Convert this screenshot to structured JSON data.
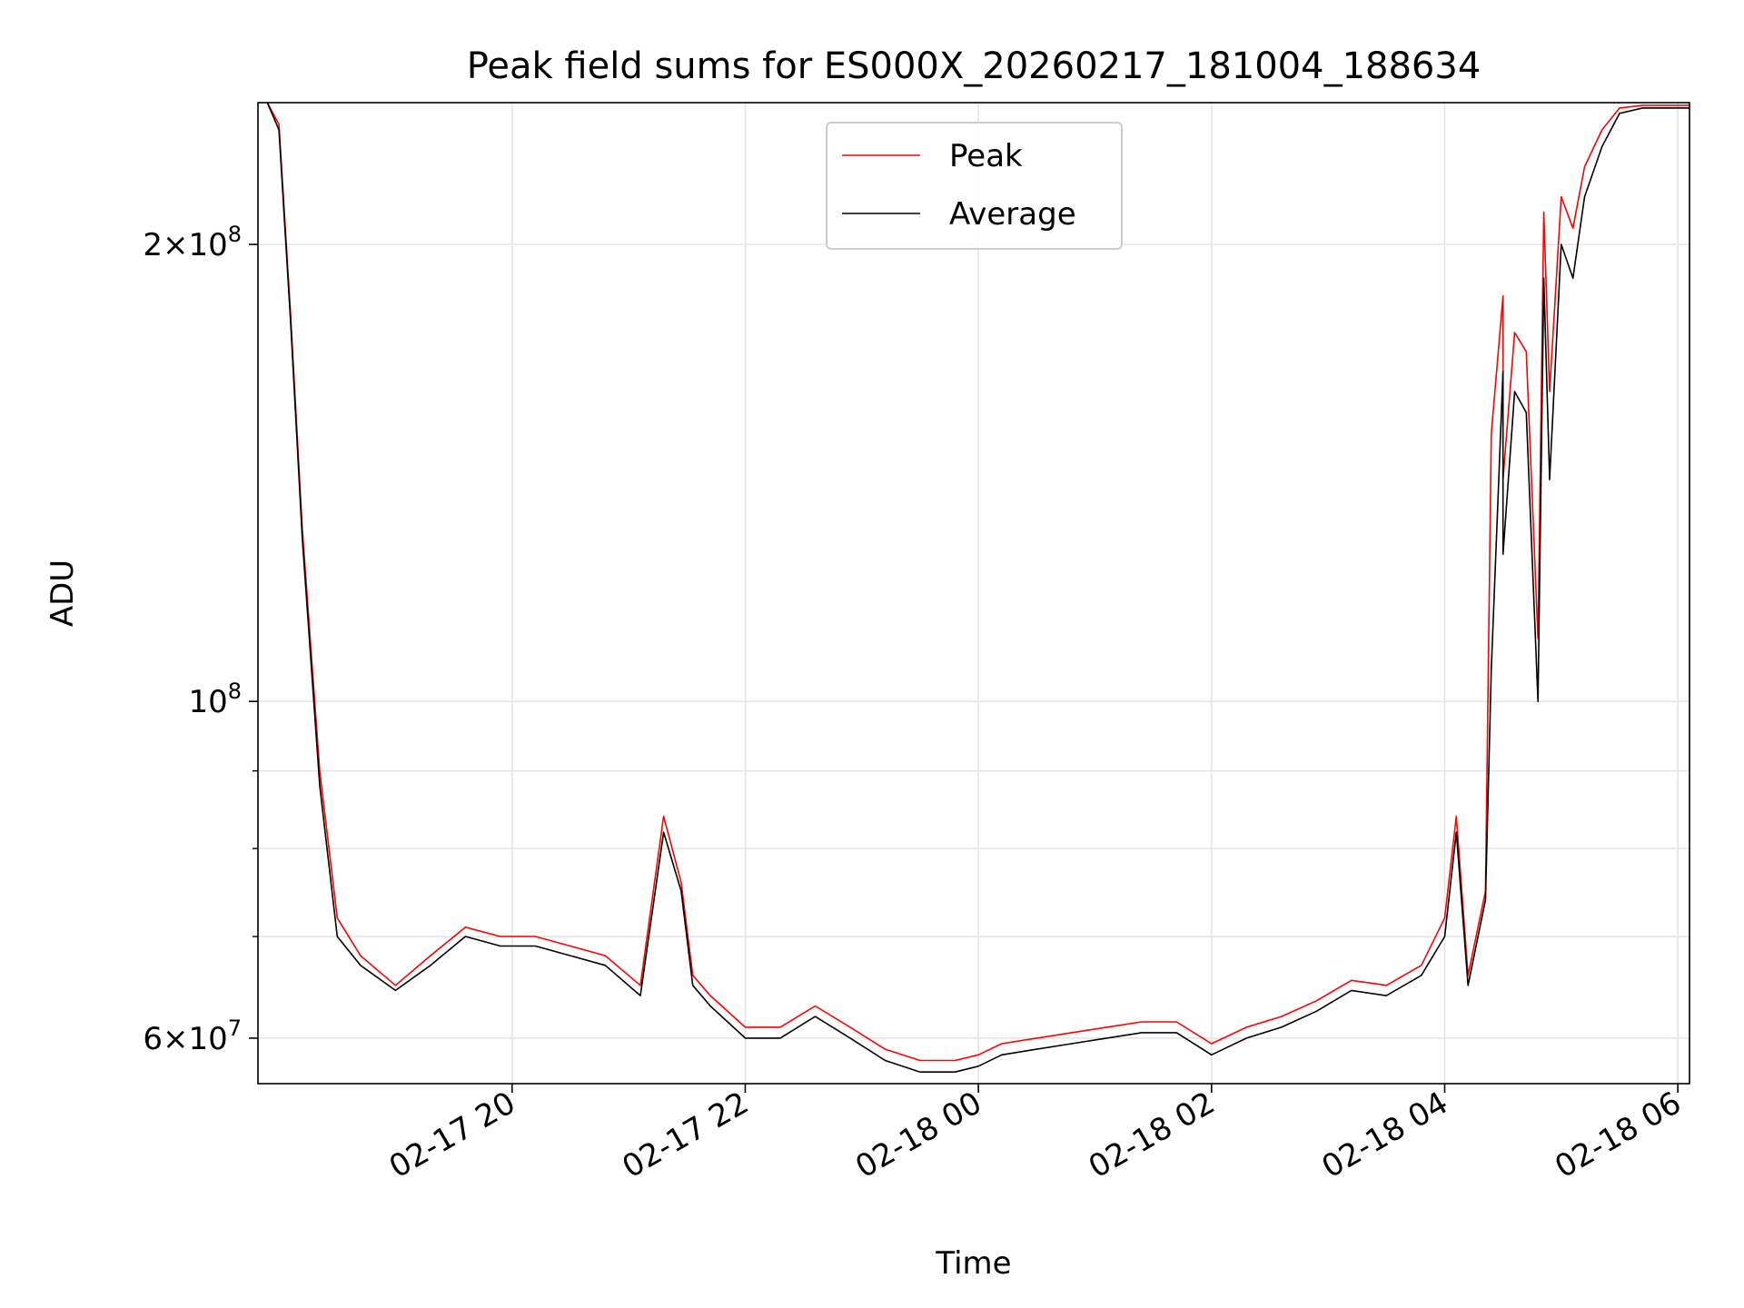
{
  "chart_data": {
    "type": "line",
    "title": "Peak field sums for ES000X_20260217_181004_188634",
    "xlabel": "Time",
    "ylabel": "ADU",
    "yscale": "log",
    "xlim_hours": [
      -0.18,
      12.1
    ],
    "ylim": [
      56000000,
      248000000
    ],
    "grid": true,
    "legend_position": "upper center",
    "x_ticks": [
      {
        "hour": 2,
        "label": "02-17 20"
      },
      {
        "hour": 4,
        "label": "02-17 22"
      },
      {
        "hour": 6,
        "label": "02-18 00"
      },
      {
        "hour": 8,
        "label": "02-18 02"
      },
      {
        "hour": 10,
        "label": "02-18 04"
      },
      {
        "hour": 12,
        "label": "02-18 06"
      }
    ],
    "y_major_ticks": [
      {
        "value": 60000000,
        "mantissa": "6",
        "exp": "7"
      },
      {
        "value": 100000000,
        "mantissa": "",
        "exp": "8"
      },
      {
        "value": 200000000,
        "mantissa": "2",
        "exp": "8"
      }
    ],
    "y_minor_ticks": [
      70000000,
      80000000,
      90000000
    ],
    "x_unit_note": "hours since 2026-02-17 18:00",
    "series": [
      {
        "name": "Peak",
        "color": "#ff0000",
        "x": [
          -0.1,
          0.0,
          0.1,
          0.2,
          0.35,
          0.5,
          0.7,
          1.0,
          1.3,
          1.6,
          1.9,
          2.2,
          2.5,
          2.8,
          3.1,
          3.3,
          3.45,
          3.55,
          3.7,
          4.0,
          4.3,
          4.6,
          4.9,
          5.2,
          5.5,
          5.8,
          6.0,
          6.2,
          6.5,
          6.8,
          7.1,
          7.4,
          7.7,
          8.0,
          8.3,
          8.6,
          8.9,
          9.2,
          9.5,
          9.8,
          10.0,
          10.1,
          10.2,
          10.35,
          10.4,
          10.5,
          10.5,
          10.6,
          10.7,
          10.8,
          10.85,
          10.9,
          11.0,
          11.1,
          11.2,
          11.35,
          11.5,
          11.7,
          11.9,
          12.1
        ],
        "values": [
          248000000,
          240000000,
          180000000,
          130000000,
          90000000,
          72000000,
          68000000,
          65000000,
          68000000,
          71000000,
          70000000,
          70000000,
          69000000,
          68000000,
          65000000,
          84000000,
          76000000,
          66000000,
          64000000,
          61000000,
          61000000,
          63000000,
          61000000,
          59000000,
          58000000,
          58000000,
          58500000,
          59500000,
          60000000,
          60500000,
          61000000,
          61500000,
          61500000,
          59500000,
          61000000,
          62000000,
          63500000,
          65500000,
          65000000,
          67000000,
          72000000,
          84000000,
          66000000,
          75000000,
          150000000,
          185000000,
          140000000,
          175000000,
          170000000,
          110000000,
          210000000,
          160000000,
          215000000,
          205000000,
          225000000,
          238000000,
          246000000,
          247000000,
          247000000,
          247000000
        ]
      },
      {
        "name": "Average",
        "color": "#000000",
        "x": [
          -0.1,
          0.0,
          0.1,
          0.2,
          0.35,
          0.5,
          0.7,
          1.0,
          1.3,
          1.6,
          1.9,
          2.2,
          2.5,
          2.8,
          3.1,
          3.3,
          3.45,
          3.55,
          3.7,
          4.0,
          4.3,
          4.6,
          4.9,
          5.2,
          5.5,
          5.8,
          6.0,
          6.2,
          6.5,
          6.8,
          7.1,
          7.4,
          7.7,
          8.0,
          8.3,
          8.6,
          8.9,
          9.2,
          9.5,
          9.8,
          10.0,
          10.1,
          10.2,
          10.35,
          10.4,
          10.5,
          10.5,
          10.6,
          10.7,
          10.8,
          10.85,
          10.9,
          11.0,
          11.1,
          11.2,
          11.35,
          11.5,
          11.7,
          11.9,
          12.1
        ],
        "values": [
          248000000,
          238000000,
          178000000,
          128000000,
          88000000,
          70000000,
          67000000,
          64500000,
          67000000,
          70000000,
          69000000,
          69000000,
          68000000,
          67000000,
          64000000,
          82000000,
          75000000,
          65000000,
          63000000,
          60000000,
          60000000,
          62000000,
          60000000,
          58000000,
          57000000,
          57000000,
          57500000,
          58500000,
          59000000,
          59500000,
          60000000,
          60500000,
          60500000,
          58500000,
          60000000,
          61000000,
          62500000,
          64500000,
          64000000,
          66000000,
          70000000,
          82000000,
          65000000,
          74000000,
          105000000,
          165000000,
          125000000,
          160000000,
          155000000,
          100000000,
          190000000,
          140000000,
          200000000,
          190000000,
          215000000,
          232000000,
          244000000,
          246000000,
          246000000,
          246000000
        ]
      }
    ]
  }
}
